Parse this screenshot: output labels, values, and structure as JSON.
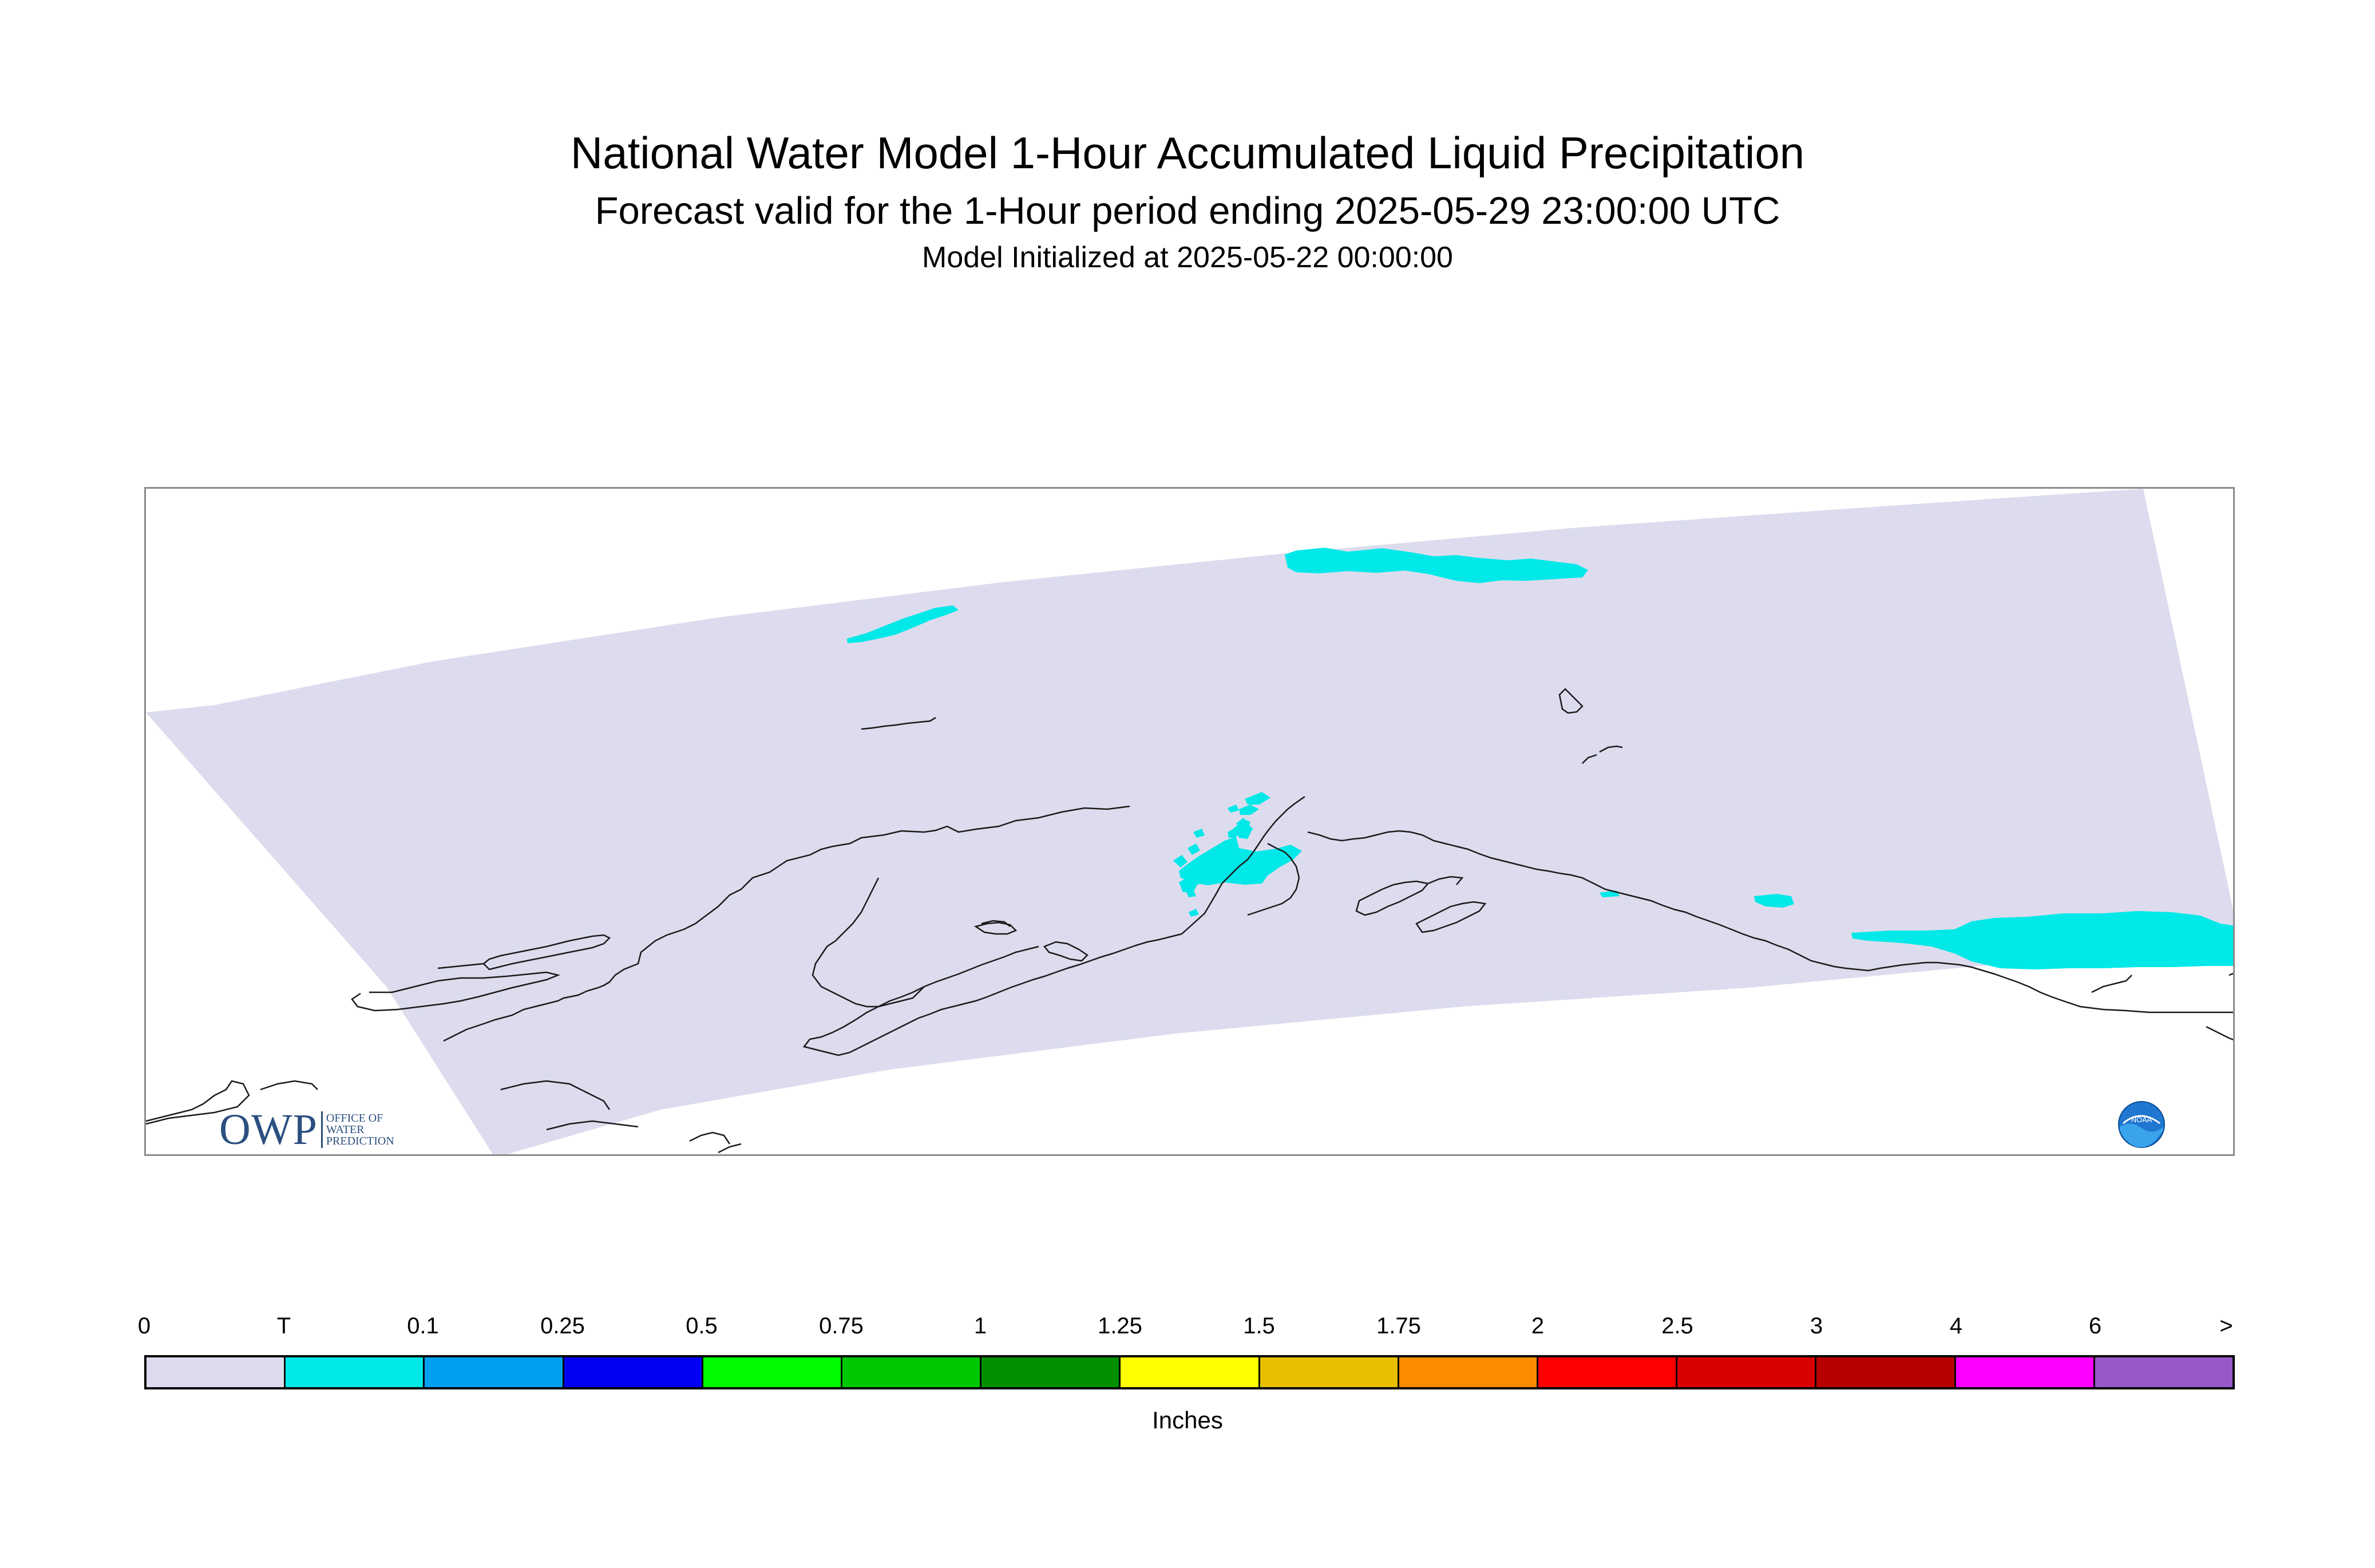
{
  "title": "National Water Model 1-Hour Accumulated Liquid Precipitation",
  "subtitle": "Forecast valid for the 1-Hour period ending 2025-05-29 23:00:00 UTC",
  "init_line": "Model Initialized at 2025-05-22 00:00:00",
  "logos": {
    "owp_text": "OWP",
    "owp_sub": [
      "OFFICE OF",
      "WATER",
      "PREDICTION"
    ],
    "noaa_text": "NOAA"
  },
  "colors": {
    "domain_fill": "#dcdcee",
    "coastline": "#1a1a1a",
    "trace_precip": "#00e8e8"
  },
  "legend": {
    "units": "Inches",
    "ticks": [
      "0",
      "T",
      "0.1",
      "0.25",
      "0.5",
      "0.75",
      "1",
      "1.25",
      "1.5",
      "1.75",
      "2",
      "2.5",
      "3",
      "4",
      "6",
      ">"
    ],
    "colors": [
      "#dcdcee",
      "#00e8e8",
      "#00a0f0",
      "#0000f5",
      "#00fa00",
      "#00c800",
      "#009000",
      "#ffff00",
      "#e8c000",
      "#ff8c00",
      "#ff0000",
      "#d80000",
      "#b80000",
      "#ff00ff",
      "#9858c8"
    ]
  }
}
